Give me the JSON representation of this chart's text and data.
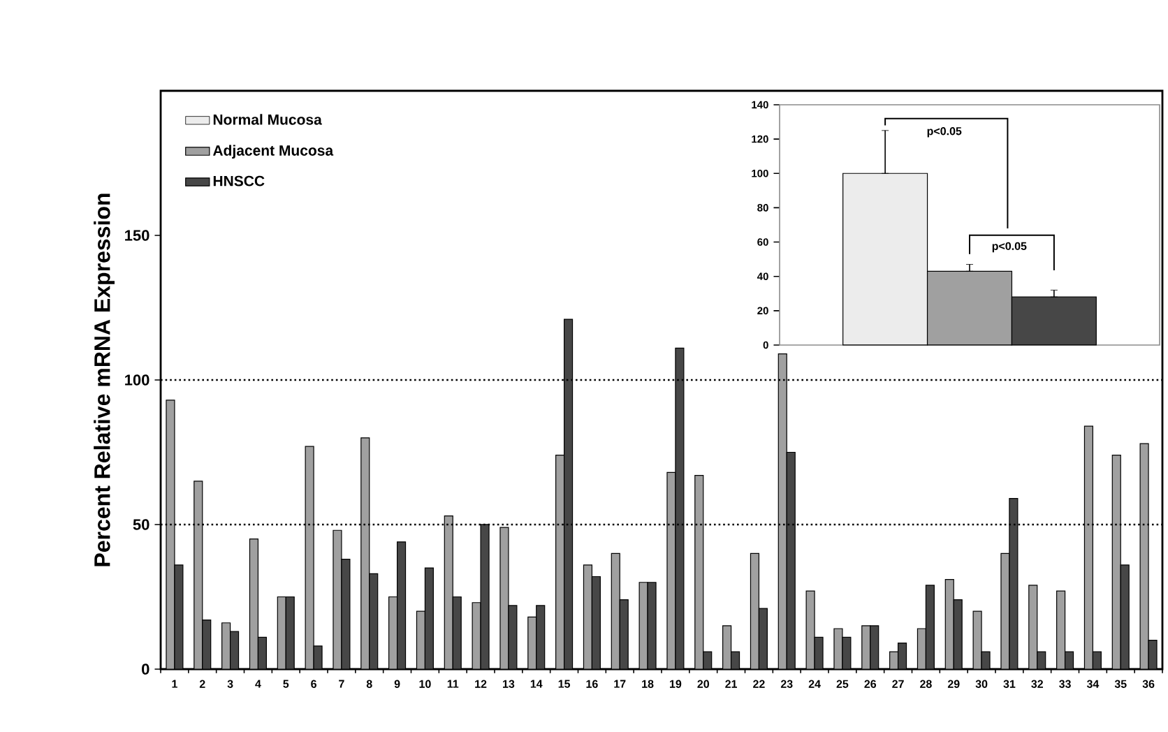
{
  "chart_data": [
    {
      "type": "bar",
      "ylabel": "Percent Relative mRNA Expression",
      "categories": [
        "1",
        "2",
        "3",
        "4",
        "5",
        "6",
        "7",
        "8",
        "9",
        "10",
        "11",
        "12",
        "13",
        "14",
        "15",
        "16",
        "17",
        "18",
        "19",
        "20",
        "21",
        "22",
        "23",
        "24",
        "25",
        "26",
        "27",
        "28",
        "29",
        "30",
        "31",
        "32",
        "33",
        "34",
        "35",
        "36"
      ],
      "series": [
        {
          "name": "Normal Mucosa",
          "color": "#ececec",
          "values": [
            null,
            null,
            null,
            null,
            null,
            null,
            null,
            null,
            null,
            null,
            null,
            null,
            null,
            null,
            null,
            null,
            null,
            null,
            null,
            null,
            null,
            null,
            null,
            null,
            null,
            null,
            null,
            null,
            null,
            null,
            null,
            null,
            null,
            null,
            null,
            null
          ]
        },
        {
          "name": "Adjacent Mucosa",
          "color": "#a0a0a0",
          "values": [
            93,
            65,
            16,
            45,
            25,
            77,
            48,
            80,
            25,
            20,
            53,
            23,
            49,
            18,
            74,
            36,
            40,
            30,
            68,
            67,
            15,
            40,
            109,
            27,
            14,
            15,
            6,
            14,
            31,
            20,
            40,
            29,
            27,
            84,
            74,
            78
          ]
        },
        {
          "name": "HNSCC",
          "color": "#474747",
          "values": [
            36,
            17,
            13,
            11,
            25,
            8,
            38,
            33,
            44,
            35,
            25,
            50,
            22,
            22,
            121,
            32,
            24,
            30,
            111,
            6,
            6,
            21,
            75,
            11,
            11,
            15,
            9,
            29,
            24,
            6,
            59,
            6,
            6,
            6,
            36,
            10
          ]
        }
      ],
      "ylim": [
        0,
        200
      ],
      "yticks": [
        0,
        50,
        100,
        150
      ],
      "ref_lines": [
        {
          "axis": "y",
          "value": 50,
          "line_style": "dotted"
        },
        {
          "axis": "y",
          "value": 100,
          "line_style": "dotted"
        }
      ],
      "legend": "top left"
    },
    {
      "type": "bar",
      "categories": [
        null,
        null,
        null
      ],
      "values": [
        100,
        43,
        28
      ],
      "colors": [
        "#ececec",
        "#a0a0a0",
        "#474747"
      ],
      "errors": [
        [
          100,
          125
        ],
        [
          43,
          47
        ],
        [
          28,
          32
        ]
      ],
      "ylim": [
        0,
        140
      ],
      "yticks": [
        0,
        20,
        40,
        60,
        80,
        100,
        120,
        140
      ],
      "annotations": [
        "p<0.05",
        "p<0.05"
      ]
    }
  ]
}
